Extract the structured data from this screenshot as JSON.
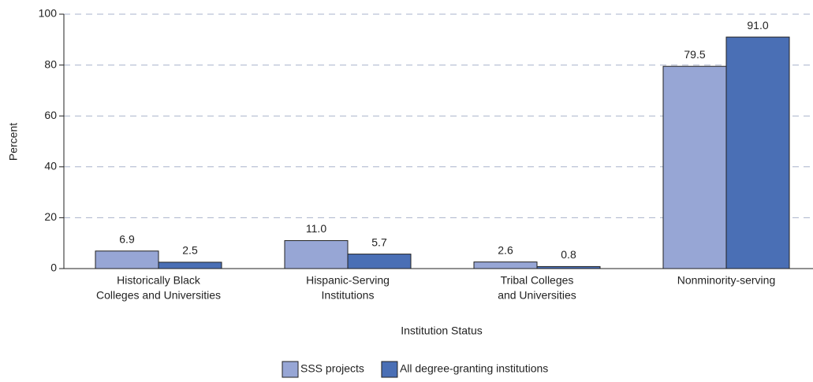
{
  "chart_data": {
    "type": "bar",
    "xlabel": "Institution Status",
    "ylabel": "Percent",
    "categories": [
      [
        "Historically Black",
        "Colleges and Universities"
      ],
      [
        "Hispanic-Serving",
        "Institutions"
      ],
      [
        "Tribal Colleges",
        "and Universities"
      ],
      [
        "Nonminority-serving"
      ]
    ],
    "series": [
      {
        "name": "SSS projects",
        "color": "#97a6d5",
        "values": [
          6.9,
          11.0,
          2.6,
          79.5
        ],
        "value_labels": [
          "6.9",
          "11.0",
          "2.6",
          "79.5"
        ]
      },
      {
        "name": "All degree-granting institutions",
        "color": "#4a6fb5",
        "values": [
          2.5,
          5.7,
          0.8,
          91.0
        ],
        "value_labels": [
          "2.5",
          "5.7",
          "0.8",
          "91.0"
        ]
      }
    ],
    "ylim": [
      0,
      100
    ],
    "yticks": [
      0,
      20,
      40,
      60,
      80,
      100
    ],
    "grid": true,
    "legend": "bottom"
  }
}
